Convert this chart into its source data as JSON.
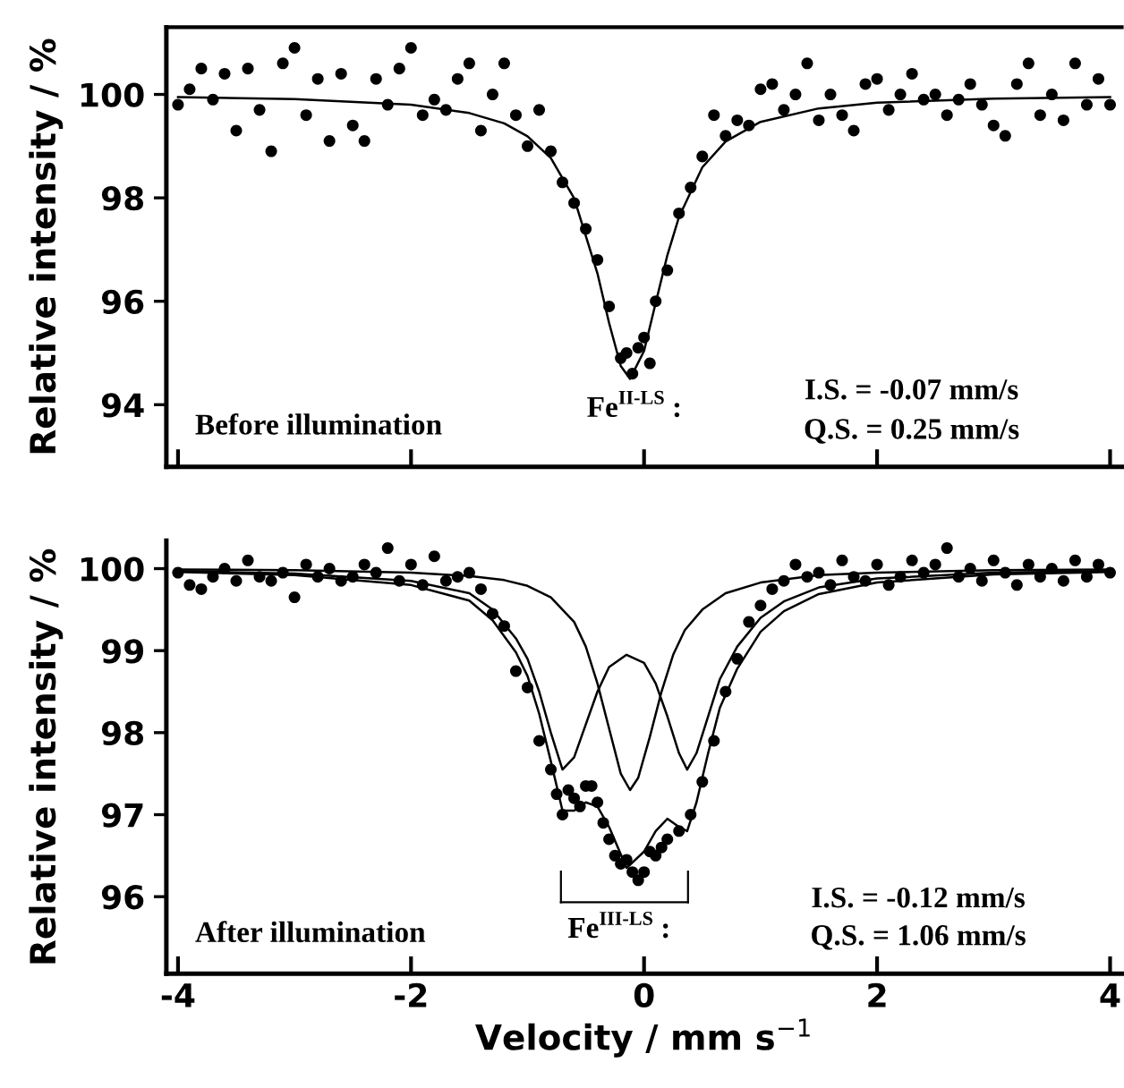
{
  "chart_data": [
    {
      "type": "scatter",
      "ylabel": "Relative intensity / %",
      "xlim": [
        -4.1,
        4.1
      ],
      "xticks": [
        {
          "value": -4,
          "label": null
        },
        {
          "value": -2,
          "label": null
        },
        {
          "value": 0,
          "label": null
        },
        {
          "value": 2,
          "label": null
        },
        {
          "value": 4,
          "label": null
        }
      ],
      "ylim": [
        92.8,
        101.3
      ],
      "yticks": [
        94,
        96,
        98,
        100
      ],
      "tick_labels": "y",
      "grid": false,
      "legend": false,
      "annotations": [
        "Before illumination",
        "Fe$^{II-LS}$ :",
        "I.S. = -0.07 mm/s",
        "Q.S. = 0.25 mm/s"
      ],
      "series": [
        {
          "marker": "circle",
          "color": "#000000",
          "x": [
            -4.0,
            -3.9,
            -3.8,
            -3.7,
            -3.6,
            -3.5,
            -3.4,
            -3.3,
            -3.2,
            -3.1,
            -3.0,
            -2.9,
            -2.8,
            -2.7,
            -2.6,
            -2.5,
            -2.4,
            -2.3,
            -2.2,
            -2.1,
            -2.0,
            -1.9,
            -1.8,
            -1.7,
            -1.6,
            -1.5,
            -1.4,
            -1.3,
            -1.2,
            -1.1,
            -1.0,
            -0.9,
            -0.8,
            -0.7,
            -0.6,
            -0.5,
            -0.4,
            -0.3,
            -0.2,
            -0.15,
            -0.1,
            -0.05,
            0.0,
            0.05,
            0.1,
            0.2,
            0.3,
            0.4,
            0.5,
            0.6,
            0.7,
            0.8,
            0.9,
            1.0,
            1.1,
            1.2,
            1.3,
            1.4,
            1.5,
            1.6,
            1.7,
            1.8,
            1.9,
            2.0,
            2.1,
            2.2,
            2.3,
            2.4,
            2.5,
            2.6,
            2.7,
            2.8,
            2.9,
            3.0,
            3.1,
            3.2,
            3.3,
            3.4,
            3.5,
            3.6,
            3.7,
            3.8,
            3.9,
            4.0
          ],
          "values": [
            99.8,
            100.1,
            100.5,
            99.9,
            100.4,
            99.3,
            100.5,
            99.7,
            98.9,
            100.6,
            100.9,
            99.6,
            100.3,
            99.1,
            100.4,
            99.4,
            99.1,
            100.3,
            99.8,
            100.5,
            100.9,
            99.6,
            99.9,
            99.7,
            100.3,
            100.6,
            99.3,
            100.0,
            100.6,
            99.6,
            99.0,
            99.7,
            98.9,
            98.3,
            97.9,
            97.4,
            96.8,
            95.9,
            94.9,
            95.0,
            94.6,
            95.1,
            95.3,
            94.8,
            96.0,
            96.6,
            97.7,
            98.2,
            98.8,
            99.6,
            99.2,
            99.5,
            99.4,
            100.1,
            100.2,
            99.7,
            100.0,
            100.6,
            99.5,
            100.0,
            99.6,
            99.3,
            100.2,
            100.3,
            99.7,
            100.0,
            100.4,
            99.9,
            100.0,
            99.6,
            99.9,
            100.2,
            99.8,
            99.4,
            99.2,
            100.2,
            100.6,
            99.6,
            100.0,
            99.5,
            100.6,
            99.8,
            100.3,
            99.8
          ]
        },
        {
          "type": "line",
          "marker": "none",
          "line_style": "solid",
          "color": "#000000",
          "x": [
            -4,
            -3,
            -2,
            -1.5,
            -1.2,
            -1,
            -0.8,
            -0.6,
            -0.4,
            -0.3,
            -0.2,
            -0.12,
            0,
            0.1,
            0.2,
            0.3,
            0.5,
            0.7,
            1,
            1.5,
            2,
            3,
            4
          ],
          "values": [
            99.95,
            99.91,
            99.8,
            99.64,
            99.44,
            99.19,
            98.77,
            97.99,
            96.54,
            95.58,
            94.75,
            94.5,
            95.04,
            95.97,
            96.89,
            97.63,
            98.59,
            99.09,
            99.47,
            99.73,
            99.84,
            99.92,
            99.95
          ]
        }
      ]
    },
    {
      "type": "scatter",
      "ylabel": "Relative intensity / %",
      "xlabel": "Velocity / mm s$^{−1}$",
      "xlim": [
        -4.1,
        4.1
      ],
      "xticks": [
        -4,
        -2,
        0,
        2,
        4
      ],
      "ylim": [
        95.06,
        100.34
      ],
      "yticks": [
        96,
        97,
        98,
        99,
        100
      ],
      "grid": false,
      "legend": false,
      "annotations": [
        "After illumination",
        "Fe$^{III-LS}$ :",
        "I.S. = -0.12 mm/s",
        "Q.S. = 1.06 mm/s"
      ],
      "series": [
        {
          "marker": "circle",
          "color": "#000000",
          "x": [
            -4.0,
            -3.9,
            -3.8,
            -3.7,
            -3.6,
            -3.5,
            -3.4,
            -3.3,
            -3.2,
            -3.1,
            -3.0,
            -2.9,
            -2.8,
            -2.7,
            -2.6,
            -2.5,
            -2.4,
            -2.3,
            -2.2,
            -2.1,
            -2.0,
            -1.9,
            -1.8,
            -1.7,
            -1.6,
            -1.5,
            -1.4,
            -1.3,
            -1.2,
            -1.1,
            -1.0,
            -0.9,
            -0.8,
            -0.75,
            -0.7,
            -0.65,
            -0.6,
            -0.55,
            -0.5,
            -0.45,
            -0.4,
            -0.35,
            -0.3,
            -0.25,
            -0.2,
            -0.15,
            -0.1,
            -0.05,
            0.0,
            0.05,
            0.1,
            0.15,
            0.2,
            0.3,
            0.4,
            0.5,
            0.6,
            0.7,
            0.8,
            0.9,
            1.0,
            1.1,
            1.2,
            1.3,
            1.4,
            1.5,
            1.6,
            1.7,
            1.8,
            1.9,
            2.0,
            2.1,
            2.2,
            2.3,
            2.4,
            2.5,
            2.6,
            2.7,
            2.8,
            2.9,
            3.0,
            3.1,
            3.2,
            3.3,
            3.4,
            3.5,
            3.6,
            3.7,
            3.8,
            3.9,
            4.0
          ],
          "values": [
            99.95,
            99.8,
            99.75,
            99.9,
            100.0,
            99.85,
            100.1,
            99.9,
            99.85,
            99.95,
            99.65,
            100.05,
            99.9,
            100.0,
            99.85,
            99.9,
            100.05,
            99.95,
            100.25,
            99.85,
            100.05,
            99.8,
            100.15,
            99.85,
            99.9,
            99.95,
            99.75,
            99.45,
            99.3,
            98.75,
            98.55,
            97.9,
            97.55,
            97.25,
            97.0,
            97.3,
            97.2,
            97.1,
            97.35,
            97.35,
            97.15,
            96.9,
            96.7,
            96.5,
            96.4,
            96.45,
            96.3,
            96.2,
            96.3,
            96.55,
            96.5,
            96.6,
            96.7,
            96.8,
            97.0,
            97.4,
            97.9,
            98.5,
            98.9,
            99.35,
            99.55,
            99.75,
            99.85,
            100.05,
            99.9,
            99.95,
            99.8,
            100.1,
            99.9,
            99.85,
            100.05,
            99.8,
            99.9,
            100.1,
            99.95,
            100.05,
            100.25,
            99.9,
            100.0,
            99.85,
            100.1,
            99.95,
            99.8,
            100.05,
            99.9,
            100.0,
            99.85,
            100.1,
            99.9,
            100.05,
            99.95
          ]
        },
        {
          "type": "line",
          "marker": "none",
          "line_style": "solid",
          "color": "#000000",
          "x": [
            -4,
            -3,
            -2,
            -1.5,
            -1.3,
            -1.1,
            -1.0,
            -0.9,
            -0.8,
            -0.7,
            -0.6,
            -0.5,
            -0.4,
            -0.3,
            -0.15,
            0.0,
            0.1,
            0.2,
            0.3,
            0.37,
            0.45,
            0.55,
            0.65,
            0.8,
            1.0,
            1.2,
            1.5,
            2,
            3,
            4
          ],
          "values": [
            99.96,
            99.92,
            99.8,
            99.61,
            99.37,
            98.98,
            98.69,
            98.23,
            97.65,
            97.05,
            97.05,
            97.15,
            97.1,
            96.85,
            96.35,
            96.55,
            96.8,
            96.95,
            96.85,
            96.8,
            97.15,
            97.75,
            98.3,
            98.78,
            99.23,
            99.48,
            99.69,
            99.83,
            99.93,
            99.96
          ]
        },
        {
          "type": "line",
          "marker": "none",
          "line_style": "solid",
          "color": "#000000",
          "x": [
            -4,
            -3,
            -2,
            -1.5,
            -1.3,
            -1.1,
            -1.0,
            -0.9,
            -0.8,
            -0.7,
            -0.6,
            -0.5,
            -0.4,
            -0.3,
            -0.15,
            0.0,
            0.1,
            0.2,
            0.3,
            0.37,
            0.45,
            0.55,
            0.65,
            0.8,
            1.0,
            1.2,
            1.5,
            2,
            3,
            4
          ],
          "values": [
            99.97,
            99.94,
            99.85,
            99.7,
            99.5,
            99.15,
            98.9,
            98.5,
            98.0,
            97.55,
            97.7,
            98.1,
            98.5,
            98.8,
            98.95,
            98.85,
            98.6,
            98.2,
            97.75,
            97.55,
            97.75,
            98.2,
            98.65,
            99.05,
            99.4,
            99.6,
            99.77,
            99.88,
            99.95,
            99.97
          ]
        },
        {
          "type": "line",
          "marker": "none",
          "line_style": "solid",
          "color": "#000000",
          "x": [
            -4,
            -3,
            -2,
            -1.5,
            -1.2,
            -1,
            -0.8,
            -0.6,
            -0.5,
            -0.4,
            -0.3,
            -0.2,
            -0.12,
            -0.05,
            0.05,
            0.15,
            0.25,
            0.35,
            0.5,
            0.7,
            1,
            1.5,
            2,
            3,
            4
          ],
          "values": [
            99.99,
            99.98,
            99.95,
            99.91,
            99.86,
            99.79,
            99.65,
            99.35,
            99.05,
            98.6,
            98.05,
            97.5,
            97.3,
            97.45,
            97.95,
            98.5,
            98.95,
            99.25,
            99.5,
            99.7,
            99.83,
            99.92,
            99.95,
            99.98,
            99.99
          ]
        }
      ]
    }
  ]
}
